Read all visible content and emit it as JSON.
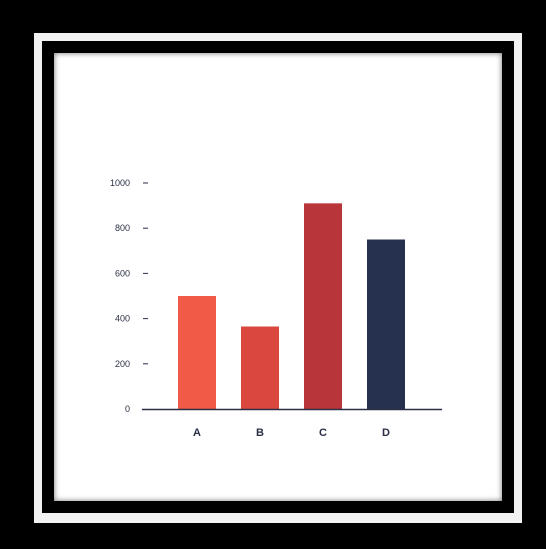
{
  "chart_data": {
    "type": "bar",
    "title": "",
    "xlabel": "",
    "ylabel": "",
    "categories": [
      "A",
      "B",
      "C",
      "D"
    ],
    "values": [
      500,
      365,
      910,
      750
    ],
    "colors": [
      "#f05a47",
      "#d9473f",
      "#b8363a",
      "#26314f"
    ],
    "ylim": [
      0,
      1000
    ],
    "yticks": [
      0,
      200,
      400,
      600,
      800,
      1000
    ],
    "ytick_labels": [
      "0",
      "200",
      "400",
      "600",
      "800",
      "1000"
    ],
    "grid": false,
    "legend": "none",
    "axis_color": "#2a2f45"
  }
}
